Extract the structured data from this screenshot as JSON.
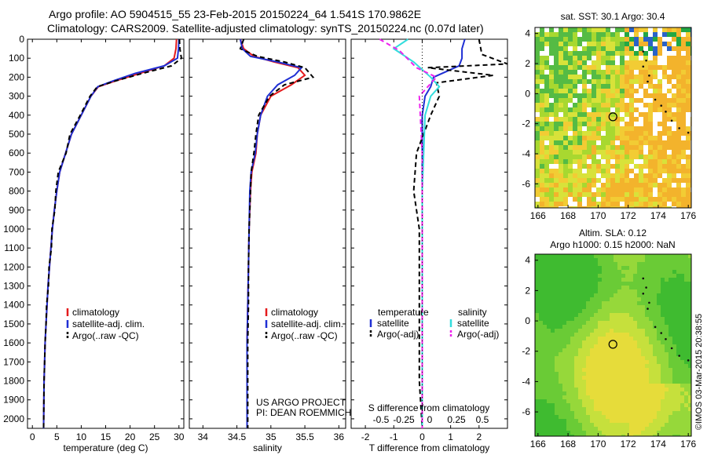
{
  "header": {
    "line1": "Argo profile: AO 5904515_55 23-Feb-2015 20150224_64 1.541S 170.9862E",
    "line2": "Climatology: CARS2009. Satellite-adjusted climatology: synTS_20150224.nc (0.07d later)"
  },
  "credit": "©IMOS 03-Mar-2015 20:38:55",
  "colors": {
    "climatology": "#e41a1c",
    "satellite": "#1f2fd4",
    "argo": "#000000",
    "satellite_salinity": "#33dddd",
    "argo_salinity": "#ee22ee"
  },
  "chart_data": [
    {
      "type": "line",
      "name": "temperature",
      "xlabel": "temperature (deg C)",
      "ylabel": "",
      "xlim": [
        -1,
        31
      ],
      "ylim": [
        2050,
        0
      ],
      "xticks": [
        "0",
        "5",
        "10",
        "15",
        "20",
        "25",
        "30"
      ],
      "yticks": [
        "0",
        "100",
        "200",
        "300",
        "400",
        "500",
        "600",
        "700",
        "800",
        "900",
        "1000",
        "1100",
        "1200",
        "1300",
        "1400",
        "1500",
        "1600",
        "1700",
        "1800",
        "1900",
        "2000"
      ],
      "legend": [
        "climatology",
        "satellite-adj. clim.",
        "Argo(..raw -QC)"
      ],
      "series": [
        {
          "name": "climatology",
          "x": [
            29.5,
            29.4,
            29.0,
            27.0,
            22.0,
            17.0,
            13.5,
            12.0,
            10.0,
            8.0,
            6.8,
            5.6,
            5.0,
            4.5,
            4.1,
            3.8,
            3.5,
            3.2,
            3.0,
            2.8,
            2.6,
            2.5,
            2.4,
            2.3
          ],
          "y": [
            0,
            50,
            100,
            140,
            180,
            220,
            250,
            300,
            400,
            500,
            600,
            700,
            800,
            900,
            1000,
            1100,
            1200,
            1300,
            1400,
            1500,
            1600,
            1700,
            1800,
            2050
          ]
        },
        {
          "name": "satellite-adj. clim.",
          "x": [
            30.0,
            29.9,
            29.7,
            27.0,
            21.0,
            16.5,
            13.4,
            12.0,
            10.0,
            8.0,
            6.8,
            5.6,
            5.0,
            4.5,
            4.1,
            3.8,
            3.5,
            3.2,
            3.0,
            2.8,
            2.6,
            2.5,
            2.4,
            2.3
          ],
          "y": [
            0,
            50,
            100,
            140,
            180,
            220,
            250,
            300,
            400,
            500,
            600,
            700,
            800,
            900,
            1000,
            1100,
            1200,
            1300,
            1400,
            1500,
            1600,
            1700,
            1800,
            2050
          ]
        },
        {
          "name": "Argo(..raw -QC)",
          "x": [
            30.1,
            30.2,
            30.5,
            28.5,
            22.5,
            17.0,
            13.3,
            11.8,
            9.8,
            7.7,
            6.9,
            5.3,
            4.8,
            4.6,
            4.0,
            3.9,
            3.4,
            3.3,
            2.9,
            2.8,
            2.6,
            2.5,
            2.4,
            2.3
          ],
          "y": [
            0,
            50,
            100,
            140,
            180,
            220,
            250,
            300,
            400,
            500,
            600,
            700,
            800,
            900,
            1000,
            1100,
            1200,
            1300,
            1400,
            1500,
            1600,
            1700,
            1800,
            2050
          ]
        }
      ]
    },
    {
      "type": "line",
      "name": "salinity",
      "xlabel": "salinity",
      "xlim": [
        33.8,
        36.1
      ],
      "ylim": [
        2050,
        0
      ],
      "xticks": [
        "34",
        "34.5",
        "35",
        "35.5",
        "36"
      ],
      "legend": [
        "climatology",
        "satellite-adj. clim.",
        "Argo(..raw -QC)"
      ],
      "annotation": [
        "US ARGO PROJECT",
        "PI: DEAN ROEMMICH"
      ],
      "series": [
        {
          "name": "climatology",
          "x": [
            34.55,
            34.6,
            34.75,
            35.05,
            35.4,
            35.5,
            35.3,
            35.0,
            34.85,
            34.8,
            34.78,
            34.72,
            34.7,
            34.68,
            34.67,
            34.66,
            34.65,
            34.65,
            34.65
          ],
          "y": [
            0,
            50,
            90,
            120,
            150,
            190,
            240,
            300,
            400,
            500,
            600,
            700,
            800,
            1000,
            1200,
            1400,
            1600,
            1800,
            2050
          ]
        },
        {
          "name": "satellite-adj. clim.",
          "x": [
            34.55,
            34.58,
            34.7,
            35.1,
            35.45,
            35.35,
            35.1,
            34.95,
            34.85,
            34.8,
            34.77,
            34.71,
            34.69,
            34.68,
            34.67,
            34.66,
            34.65,
            34.65,
            34.65
          ],
          "y": [
            0,
            50,
            90,
            120,
            150,
            190,
            240,
            300,
            400,
            500,
            600,
            700,
            800,
            1000,
            1200,
            1400,
            1600,
            1800,
            2050
          ]
        },
        {
          "name": "Argo(..raw -QC)",
          "x": [
            34.6,
            34.55,
            34.8,
            35.2,
            35.5,
            35.62,
            35.2,
            34.98,
            34.82,
            34.78,
            34.75,
            34.71,
            34.7,
            34.68,
            34.67,
            34.67,
            34.66,
            34.66,
            34.66
          ],
          "y": [
            0,
            50,
            90,
            120,
            150,
            200,
            240,
            300,
            400,
            500,
            600,
            700,
            800,
            1000,
            1200,
            1400,
            1600,
            1800,
            2050
          ]
        }
      ]
    },
    {
      "type": "line",
      "name": "difference",
      "xlabel": "T difference from climatology",
      "xlabel_top": "S difference from climatology",
      "xlim": [
        -2.5,
        3.0
      ],
      "ylim": [
        2050,
        0
      ],
      "xticks": [
        "-2",
        "-1",
        "0",
        "1",
        "2"
      ],
      "xticks_top": [
        "-0.5",
        "-0.25",
        "0",
        "0.25",
        "0.5"
      ],
      "legend_titles": [
        "temperature",
        "salinity"
      ],
      "legend": [
        "satellite",
        "Argo(-adj)",
        "satellite",
        "Argo(-adj)"
      ],
      "series": [
        {
          "name": "temperature satellite",
          "x": [
            1.5,
            1.4,
            1.4,
            1.3,
            0.4,
            0.3,
            0.1,
            0.0,
            0.0,
            0.0,
            0.0,
            0.0,
            0.0,
            0.0
          ],
          "y": [
            0,
            50,
            100,
            140,
            200,
            250,
            300,
            400,
            600,
            800,
            1000,
            1400,
            1800,
            2050
          ]
        },
        {
          "name": "temperature Argo(-adj)",
          "x": [
            2.0,
            2.1,
            3.0,
            0.2,
            2.5,
            0.5,
            0.6,
            0.3,
            -0.2,
            -0.3,
            -0.1,
            -0.1,
            -0.1,
            0.0
          ],
          "y": [
            0,
            80,
            130,
            150,
            190,
            230,
            300,
            400,
            600,
            800,
            1000,
            1400,
            1800,
            2050
          ]
        },
        {
          "name": "salinity satellite",
          "x": [
            -0.5,
            -1.0,
            -0.3,
            0.3,
            0.6,
            0.3,
            0.1,
            0.05,
            0.0,
            0.0,
            0.0,
            0.0
          ],
          "y": [
            0,
            50,
            120,
            200,
            250,
            300,
            400,
            600,
            800,
            1000,
            1400,
            2050
          ]
        },
        {
          "name": "salinity Argo(-adj)",
          "x": [
            -1.5,
            -0.8,
            -0.2,
            0.5,
            -0.1,
            0.0,
            0.0,
            0.0
          ],
          "y": [
            0,
            60,
            150,
            200,
            300,
            600,
            1000,
            2050
          ]
        }
      ]
    },
    {
      "type": "heatmap",
      "name": "sat-sst-map",
      "title": "sat. SST: 30.1  Argo: 30.4",
      "xlim": [
        165.8,
        176.2
      ],
      "ylim": [
        -7.6,
        4.4
      ],
      "xticks": [
        "166",
        "168",
        "170",
        "172",
        "174",
        "176"
      ],
      "yticks": [
        "4",
        "2",
        "0",
        "-2",
        "-4",
        "-6"
      ],
      "profile_location": [
        170.9862,
        -1.541
      ]
    },
    {
      "type": "heatmap",
      "name": "altimetry-map",
      "title": "Altim. SLA: 0.12",
      "subtitle": "Argo h1000: 0.15 h2000: NaN",
      "xlim": [
        165.8,
        176.2
      ],
      "ylim": [
        -7.6,
        4.4
      ],
      "xticks": [
        "166",
        "168",
        "170",
        "172",
        "174",
        "176"
      ],
      "yticks": [
        "4",
        "2",
        "0",
        "-2",
        "-4",
        "-6"
      ],
      "profile_location": [
        170.9862,
        -1.541
      ]
    }
  ]
}
